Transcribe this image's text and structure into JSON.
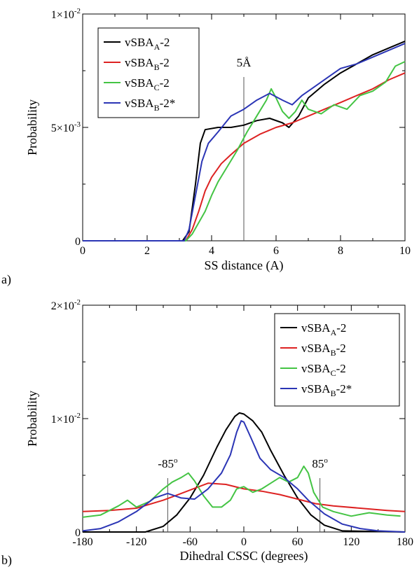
{
  "chart_data": [
    {
      "panel_label": "a)",
      "type": "line",
      "xlabel": "SS distance (A)",
      "ylabel": "Probability",
      "xlim": [
        0,
        10
      ],
      "ylim": [
        0,
        0.01
      ],
      "x_ticks": [
        {
          "value": 0,
          "label": "0"
        },
        {
          "value": 2,
          "label": "2"
        },
        {
          "value": 4,
          "label": "4"
        },
        {
          "value": 6,
          "label": "6"
        },
        {
          "value": 8,
          "label": "8"
        },
        {
          "value": 10,
          "label": "10"
        }
      ],
      "y_ticks": [
        {
          "value": 0,
          "base": "0",
          "exp": ""
        },
        {
          "value": 0.005,
          "base": "5×10",
          "exp": "-3"
        },
        {
          "value": 0.01,
          "base": "1×10",
          "exp": "-2"
        }
      ],
      "annotations": [
        {
          "x": 5,
          "text": "5Å"
        }
      ],
      "legend_position": "top-left",
      "series": [
        {
          "name": "vSBA",
          "sub": "A",
          "suffix": "-2",
          "color": "#000000",
          "points": [
            [
              0,
              0
            ],
            [
              3.1,
              0
            ],
            [
              3.3,
              0.0004
            ],
            [
              3.5,
              0.0025
            ],
            [
              3.65,
              0.0043
            ],
            [
              3.8,
              0.0049
            ],
            [
              4.2,
              0.005
            ],
            [
              4.6,
              0.005
            ],
            [
              5.0,
              0.0051
            ],
            [
              5.4,
              0.0053
            ],
            [
              5.8,
              0.0054
            ],
            [
              6.2,
              0.0052
            ],
            [
              6.4,
              0.005
            ],
            [
              6.7,
              0.0055
            ],
            [
              7.0,
              0.0063
            ],
            [
              7.5,
              0.0069
            ],
            [
              8.0,
              0.0074
            ],
            [
              8.5,
              0.0078
            ],
            [
              9.0,
              0.0082
            ],
            [
              9.5,
              0.0085
            ],
            [
              10,
              0.0088
            ]
          ]
        },
        {
          "name": "vSBA",
          "sub": "B",
          "suffix": "-2",
          "color": "#dd2222",
          "points": [
            [
              0,
              0
            ],
            [
              3.2,
              0
            ],
            [
              3.4,
              0.0005
            ],
            [
              3.6,
              0.0013
            ],
            [
              3.8,
              0.0022
            ],
            [
              4.0,
              0.0028
            ],
            [
              4.3,
              0.0034
            ],
            [
              4.6,
              0.0038
            ],
            [
              5.0,
              0.0043
            ],
            [
              5.5,
              0.0047
            ],
            [
              6.0,
              0.005
            ],
            [
              6.5,
              0.0052
            ],
            [
              7.0,
              0.0055
            ],
            [
              7.5,
              0.0058
            ],
            [
              8.0,
              0.0061
            ],
            [
              8.5,
              0.0064
            ],
            [
              9.0,
              0.0067
            ],
            [
              9.5,
              0.0071
            ],
            [
              10,
              0.0074
            ]
          ]
        },
        {
          "name": "vSBA",
          "sub": "C",
          "suffix": "-2",
          "color": "#44c444",
          "points": [
            [
              0,
              0
            ],
            [
              3.2,
              0
            ],
            [
              3.4,
              0.0003
            ],
            [
              3.6,
              0.0008
            ],
            [
              3.8,
              0.0013
            ],
            [
              4.0,
              0.002
            ],
            [
              4.2,
              0.0026
            ],
            [
              4.5,
              0.0033
            ],
            [
              4.8,
              0.004
            ],
            [
              5.1,
              0.0048
            ],
            [
              5.4,
              0.0055
            ],
            [
              5.7,
              0.0062
            ],
            [
              5.85,
              0.0067
            ],
            [
              6.0,
              0.0063
            ],
            [
              6.2,
              0.0057
            ],
            [
              6.4,
              0.0054
            ],
            [
              6.6,
              0.0057
            ],
            [
              6.8,
              0.0062
            ],
            [
              7.0,
              0.0058
            ],
            [
              7.4,
              0.0056
            ],
            [
              7.8,
              0.006
            ],
            [
              8.2,
              0.0058
            ],
            [
              8.6,
              0.0064
            ],
            [
              9.0,
              0.0066
            ],
            [
              9.4,
              0.007
            ],
            [
              9.7,
              0.0077
            ],
            [
              10,
              0.0079
            ]
          ]
        },
        {
          "name": "vSBA",
          "sub": "B",
          "suffix": "-2*",
          "color": "#2b35b5",
          "points": [
            [
              0,
              0
            ],
            [
              3.15,
              0
            ],
            [
              3.3,
              0.0005
            ],
            [
              3.5,
              0.002
            ],
            [
              3.7,
              0.0035
            ],
            [
              3.9,
              0.0043
            ],
            [
              4.2,
              0.0048
            ],
            [
              4.6,
              0.0055
            ],
            [
              5.0,
              0.0058
            ],
            [
              5.4,
              0.0062
            ],
            [
              5.8,
              0.0065
            ],
            [
              6.2,
              0.0062
            ],
            [
              6.5,
              0.006
            ],
            [
              6.8,
              0.0064
            ],
            [
              7.2,
              0.0068
            ],
            [
              7.6,
              0.0072
            ],
            [
              8.0,
              0.0076
            ],
            [
              8.5,
              0.0078
            ],
            [
              9.0,
              0.0081
            ],
            [
              9.5,
              0.0084
            ],
            [
              10,
              0.0087
            ]
          ]
        }
      ]
    },
    {
      "panel_label": "b)",
      "type": "line",
      "xlabel": "Dihedral CSSC (degrees)",
      "ylabel": "Probability",
      "xlim": [
        -180,
        180
      ],
      "ylim": [
        0,
        0.02
      ],
      "x_ticks": [
        {
          "value": -180,
          "label": "-180"
        },
        {
          "value": -120,
          "label": "-120"
        },
        {
          "value": -60,
          "label": "-60"
        },
        {
          "value": 0,
          "label": "0"
        },
        {
          "value": 60,
          "label": "60"
        },
        {
          "value": 120,
          "label": "120"
        },
        {
          "value": 180,
          "label": "180"
        }
      ],
      "y_ticks": [
        {
          "value": 0,
          "base": "0",
          "exp": ""
        },
        {
          "value": 0.01,
          "base": "1×10",
          "exp": "-2"
        },
        {
          "value": 0.02,
          "base": "2×10",
          "exp": "-2"
        }
      ],
      "annotations": [
        {
          "x": -85,
          "text": "-85",
          "sup": "o"
        },
        {
          "x": 85,
          "text": "85",
          "sup": "o"
        }
      ],
      "legend_position": "top-right",
      "series": [
        {
          "name": "vSBA",
          "sub": "A",
          "suffix": "-2",
          "color": "#000000",
          "points": [
            [
              -180,
              0
            ],
            [
              -110,
              0
            ],
            [
              -90,
              0.0005
            ],
            [
              -75,
              0.0015
            ],
            [
              -60,
              0.003
            ],
            [
              -45,
              0.005
            ],
            [
              -30,
              0.0075
            ],
            [
              -20,
              0.009
            ],
            [
              -10,
              0.0102
            ],
            [
              -5,
              0.0105
            ],
            [
              0,
              0.0104
            ],
            [
              10,
              0.0098
            ],
            [
              20,
              0.0088
            ],
            [
              30,
              0.0072
            ],
            [
              45,
              0.005
            ],
            [
              60,
              0.003
            ],
            [
              75,
              0.0015
            ],
            [
              90,
              0.0006
            ],
            [
              110,
              0.0001
            ],
            [
              180,
              0
            ]
          ]
        },
        {
          "name": "vSBA",
          "sub": "B",
          "suffix": "-2",
          "color": "#dd2222",
          "points": [
            [
              -180,
              0.0018
            ],
            [
              -150,
              0.0019
            ],
            [
              -120,
              0.0021
            ],
            [
              -90,
              0.0028
            ],
            [
              -60,
              0.0037
            ],
            [
              -40,
              0.0043
            ],
            [
              -20,
              0.0042
            ],
            [
              0,
              0.0038
            ],
            [
              20,
              0.0036
            ],
            [
              40,
              0.0033
            ],
            [
              60,
              0.0029
            ],
            [
              80,
              0.0025
            ],
            [
              100,
              0.0023
            ],
            [
              130,
              0.0021
            ],
            [
              160,
              0.0019
            ],
            [
              180,
              0.0018
            ]
          ]
        },
        {
          "name": "vSBA",
          "sub": "C",
          "suffix": "-2",
          "color": "#44c444",
          "points": [
            [
              -180,
              0.0013
            ],
            [
              -160,
              0.0015
            ],
            [
              -140,
              0.0023
            ],
            [
              -130,
              0.0028
            ],
            [
              -120,
              0.0022
            ],
            [
              -105,
              0.0027
            ],
            [
              -90,
              0.0038
            ],
            [
              -80,
              0.0044
            ],
            [
              -70,
              0.0048
            ],
            [
              -62,
              0.0052
            ],
            [
              -55,
              0.0045
            ],
            [
              -45,
              0.0032
            ],
            [
              -35,
              0.0022
            ],
            [
              -25,
              0.0022
            ],
            [
              -15,
              0.0028
            ],
            [
              -8,
              0.0038
            ],
            [
              0,
              0.004
            ],
            [
              10,
              0.0035
            ],
            [
              20,
              0.0038
            ],
            [
              30,
              0.0043
            ],
            [
              40,
              0.0048
            ],
            [
              50,
              0.0044
            ],
            [
              60,
              0.0048
            ],
            [
              67,
              0.0058
            ],
            [
              72,
              0.0052
            ],
            [
              78,
              0.0035
            ],
            [
              88,
              0.0022
            ],
            [
              100,
              0.0018
            ],
            [
              120,
              0.0014
            ],
            [
              140,
              0.0017
            ],
            [
              160,
              0.0015
            ],
            [
              175,
              0.0014
            ]
          ]
        },
        {
          "name": "vSBA",
          "sub": "B",
          "suffix": "-2*",
          "color": "#2b35b5",
          "points": [
            [
              -180,
              0.0001
            ],
            [
              -160,
              0.0003
            ],
            [
              -140,
              0.0009
            ],
            [
              -120,
              0.0018
            ],
            [
              -100,
              0.003
            ],
            [
              -85,
              0.0034
            ],
            [
              -70,
              0.003
            ],
            [
              -55,
              0.0029
            ],
            [
              -40,
              0.0038
            ],
            [
              -25,
              0.0052
            ],
            [
              -15,
              0.0068
            ],
            [
              -8,
              0.0088
            ],
            [
              -3,
              0.0098
            ],
            [
              0,
              0.0097
            ],
            [
              8,
              0.0083
            ],
            [
              18,
              0.0065
            ],
            [
              30,
              0.0055
            ],
            [
              45,
              0.0048
            ],
            [
              60,
              0.0038
            ],
            [
              72,
              0.0028
            ],
            [
              90,
              0.0016
            ],
            [
              110,
              0.0007
            ],
            [
              130,
              0.0003
            ],
            [
              150,
              0.0001
            ],
            [
              180,
              0
            ]
          ]
        }
      ]
    }
  ]
}
